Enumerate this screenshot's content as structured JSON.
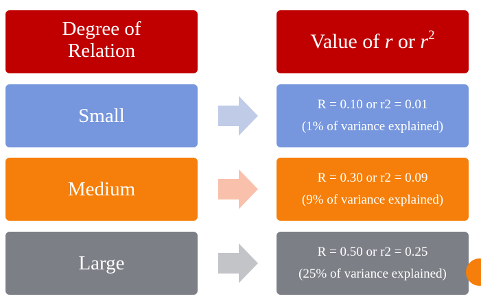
{
  "header": {
    "left_line1": "Degree of",
    "left_line2": "Relation",
    "right_prefix": "Value of ",
    "right_r": "r",
    "right_or": " or ",
    "right_r2": "r",
    "right_sup": "2"
  },
  "rows": [
    {
      "category": "Small",
      "value_line": "R = 0.10 or r2 = 0.01",
      "note": "(1% of variance explained)",
      "box_color": "#7696dd",
      "arrow_color": "#bfcbe7"
    },
    {
      "category": "Medium",
      "value_line": "R = 0.30 or r2 = 0.09",
      "note": "(9% of variance explained)",
      "box_color": "#f57f0a",
      "arrow_color": "#f9c0ab"
    },
    {
      "category": "Large",
      "value_line": "R = 0.50 or r2 = 0.25",
      "note": "(25% of variance explained)",
      "box_color": "#7c7f86",
      "arrow_color": "#c3c4c8"
    }
  ],
  "colors": {
    "header": "#c00000",
    "text": "#ffffff",
    "edge_dot": "#f57f0a"
  }
}
